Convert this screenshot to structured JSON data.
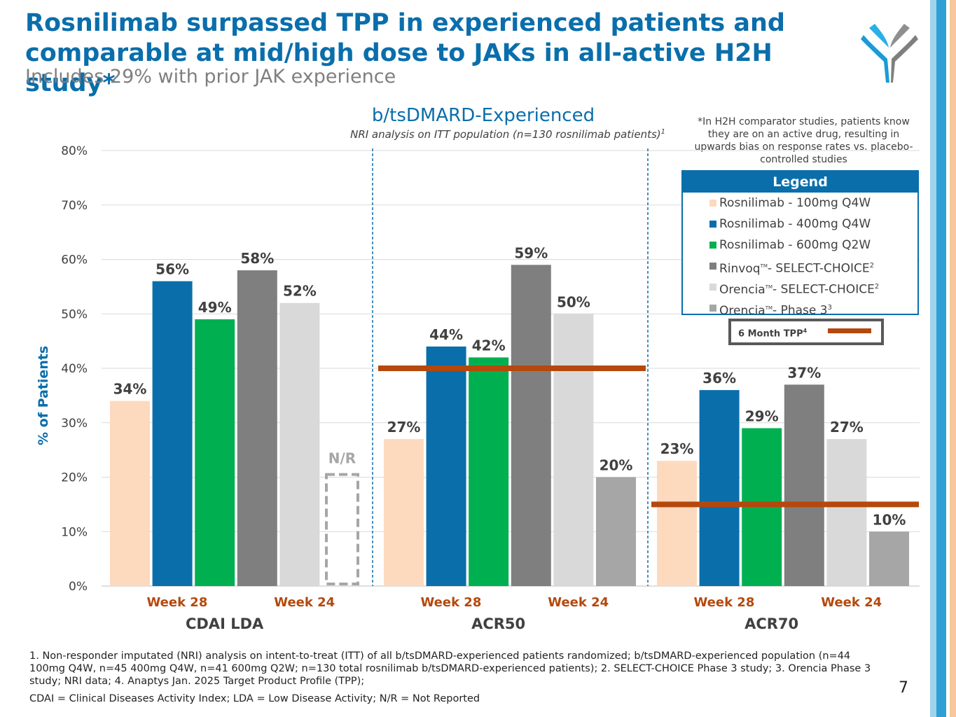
{
  "slide": {
    "title": "Rosnilimab surpassed TPP in experienced patients and comparable at mid/high dose to JAKs in all-active H2H study*",
    "subtitle": "Includes 29% with prior JAK experience",
    "page_number": "7",
    "note": "*In H2H comparator studies, patients know they are on an active drug, resulting in upwards bias on response rates vs. placebo-controlled studies",
    "footnote": "1. Non-responder imputated (NRI) analysis on intent-to-treat (ITT) of all b/tsDMARD-experienced patients randomized; b/tsDMARD-experienced population (n=44 100mg Q4W, n=45 400mg Q4W, n=41 600mg Q2W; n=130 total rosnilimab b/tsDMARD-experienced patients); 2. SELECT-CHOICE Phase 3 study; 3. Orencia Phase 3 study; NRI data; 4. Anaptys Jan. 2025 Target Product Profile (TPP);",
    "abbreviations": "CDAI = Clinical Diseases Activity Index; LDA = Low Disease Activity; N/R = Not Reported",
    "stripe_colors": [
      "#9fd3ea",
      "#2f9fd6",
      "#ffffff",
      "#f7c79d"
    ]
  },
  "legend": {
    "heading": "Legend",
    "tpp_label": "6 Month TPP",
    "tpp_sup": "4",
    "items": [
      {
        "name": "Rosnilimab - 100mg Q4W",
        "color": "#fdd9be",
        "tm": "",
        "sup": ""
      },
      {
        "name": "Rosnilimab - 400mg Q4W",
        "color": "#0a6eab",
        "tm": "",
        "sup": ""
      },
      {
        "name": "Rosnilimab - 600mg Q2W",
        "color": "#00b050",
        "tm": "",
        "sup": ""
      },
      {
        "name": "Rinvoq",
        "suffix": "- SELECT-CHOICE",
        "color": "#7f7f7f",
        "tm": "TM",
        "sup": "2"
      },
      {
        "name": "Orencia",
        "suffix": "- SELECT-CHOICE",
        "color": "#d9d9d9",
        "tm": "TM",
        "sup": "2"
      },
      {
        "name": "Orencia",
        "suffix": "- Phase 3",
        "color": "#a6a6a6",
        "tm": "TM",
        "sup": "3"
      }
    ]
  },
  "chart_data": {
    "type": "bar",
    "title": "b/tsDMARD-Experienced",
    "subtitle": "NRI analysis on ITT population (n=130 rosnilimab patients)",
    "subtitle_sup": "1",
    "ylabel": "% of Patients",
    "ylim": [
      0,
      80
    ],
    "yticks": [
      "0%",
      "10%",
      "20%",
      "30%",
      "40%",
      "50%",
      "60%",
      "70%",
      "80%"
    ],
    "grid": true,
    "groups": [
      {
        "name": "CDAI LDA",
        "week_labels": [
          "Week 28",
          "Week 24"
        ],
        "tpp": null,
        "values": [
          34,
          56,
          49,
          58,
          52,
          null
        ],
        "labels": [
          "34%",
          "56%",
          "49%",
          "58%",
          "52%",
          "N/R"
        ]
      },
      {
        "name": "ACR50",
        "week_labels": [
          "Week 28",
          "Week 24"
        ],
        "tpp": 40,
        "values": [
          27,
          44,
          42,
          59,
          50,
          20
        ],
        "labels": [
          "27%",
          "44%",
          "42%",
          "59%",
          "50%",
          "20%"
        ]
      },
      {
        "name": "ACR70",
        "week_labels": [
          "Week 28",
          "Week 24"
        ],
        "tpp": 15,
        "values": [
          23,
          36,
          29,
          37,
          27,
          10
        ],
        "labels": [
          "23%",
          "36%",
          "29%",
          "37%",
          "27%",
          "10%"
        ]
      }
    ],
    "series_colors": [
      "#fdd9be",
      "#0a6eab",
      "#00b050",
      "#7f7f7f",
      "#d9d9d9",
      "#a6a6a6"
    ],
    "tpp_color": "#b5480c",
    "week_label_color": "#b5480c",
    "label_value_precise": [
      34.1,
      56.1,
      49.0,
      58.5,
      51.9,
      20.5
    ]
  }
}
